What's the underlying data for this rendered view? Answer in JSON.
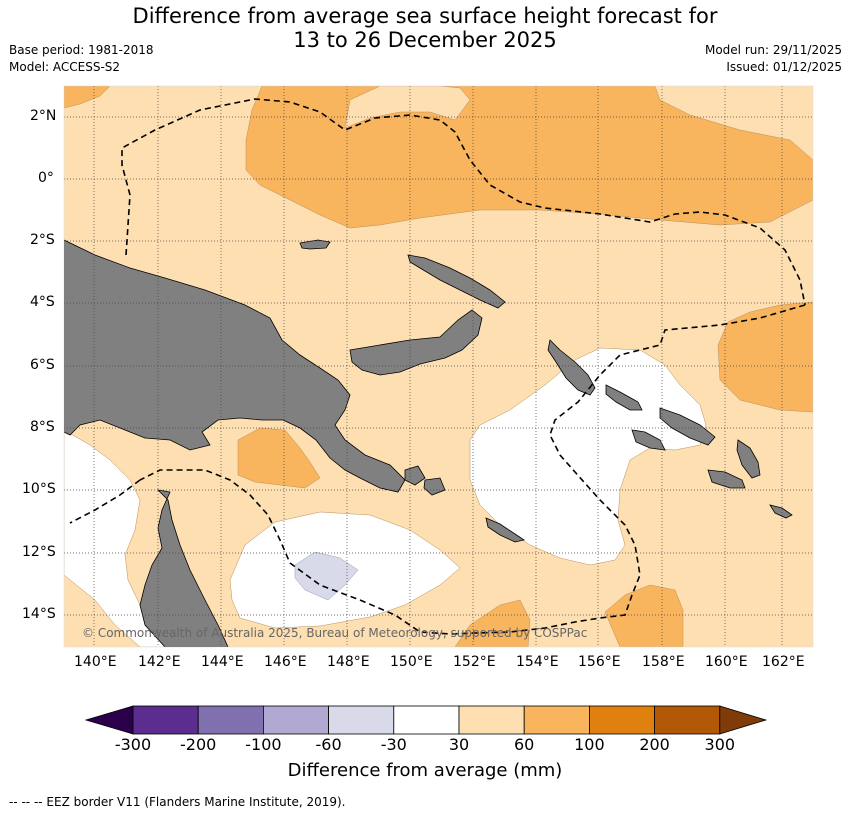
{
  "header": {
    "title_line1": "Difference from average sea surface height forecast for",
    "title_line2": "13 to 26 December 2025",
    "base_period": "Base period: 1981-2018",
    "model": "Model: ACCESS-S2",
    "model_run": "Model run: 29/11/2025",
    "issued": "Issued: 01/12/2025"
  },
  "map": {
    "lat_labels": [
      "2°N",
      "0°",
      "2°S",
      "4°S",
      "6°S",
      "8°S",
      "10°S",
      "12°S",
      "14°S"
    ],
    "lon_labels": [
      "140°E",
      "142°E",
      "144°E",
      "146°E",
      "148°E",
      "150°E",
      "152°E",
      "154°E",
      "156°E",
      "158°E",
      "160°E",
      "162°E"
    ],
    "copyright": "© Commonwealth of Australia 2025, Bureau of Meteorology, supported by COSPPac",
    "colors": {
      "land": "#808080",
      "pos_30_60": "#fddfb2",
      "pos_60_100": "#f9b45e",
      "neg_60_30": "#d8d9e9",
      "neutral": "#ffffff"
    }
  },
  "colorbar": {
    "ticks": [
      "-300",
      "-200",
      "-100",
      "-60",
      "-30",
      "30",
      "60",
      "100",
      "200",
      "300"
    ],
    "colors": [
      "#5a2d8e",
      "#8170b0",
      "#b1a9d2",
      "#d8d9e9",
      "#ffffff",
      "#fddfb2",
      "#f9b45e",
      "#e0800f",
      "#b35806"
    ],
    "under_color": "#2d004b",
    "over_color": "#7f3b08",
    "label": "Difference from average (mm)"
  },
  "footer": {
    "legend_text": "--  --  -- EEZ border V11 (Flanders Marine Institute, 2019)."
  }
}
